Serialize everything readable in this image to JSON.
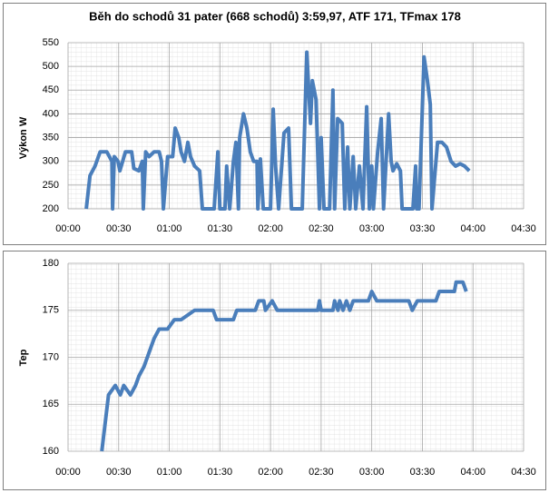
{
  "chart_data": [
    {
      "type": "line",
      "title": "Běh do schodů 31 pater (668 schodů) 3:59,97, ATF 171, TFmax 178",
      "y_label": "Výkon W",
      "xlim": [
        0,
        270
      ],
      "ylim": [
        200,
        550
      ],
      "grid": true,
      "xticks": [
        {
          "value": 0,
          "label": "00:00"
        },
        {
          "value": 30,
          "label": "00:30"
        },
        {
          "value": 60,
          "label": "01:00"
        },
        {
          "value": 90,
          "label": "01:30"
        },
        {
          "value": 120,
          "label": "02:00"
        },
        {
          "value": 150,
          "label": "02:30"
        },
        {
          "value": 180,
          "label": "03:00"
        },
        {
          "value": 210,
          "label": "03:30"
        },
        {
          "value": 240,
          "label": "04:00"
        },
        {
          "value": 270,
          "label": "04:30"
        }
      ],
      "yticks": [
        200,
        250,
        300,
        350,
        400,
        450,
        500,
        550
      ],
      "x": [
        10.8,
        13,
        16,
        19,
        23,
        26,
        26.4,
        27.4,
        29.6,
        30.7,
        34,
        37.7,
        39,
        42,
        44,
        44.6,
        46,
        48,
        51,
        54,
        55.4,
        56.5,
        59,
        62,
        63.5,
        65.6,
        67,
        69,
        71,
        72.6,
        75,
        78,
        79.6,
        86.6,
        88.8,
        90,
        93,
        94,
        95.8,
        98,
        99.5,
        101,
        101.7,
        104,
        106,
        108,
        110,
        112,
        112.5,
        114,
        115.7,
        120,
        121.6,
        123,
        124.8,
        128,
        130.7,
        132.4,
        138.8,
        141.5,
        143.7,
        144.8,
        147,
        149,
        150,
        151.7,
        155,
        157,
        158,
        159.8,
        162.5,
        164,
        165.7,
        167,
        169,
        170.5,
        172.7,
        174.8,
        177,
        178.6,
        180,
        181,
        183.5,
        185.6,
        187,
        190,
        191.5,
        192.6,
        194.8,
        197,
        198,
        204.4,
        206,
        206.6,
        208,
        211,
        213,
        214.7,
        215.7,
        219,
        221.6,
        224.3,
        227,
        229.7,
        232.4,
        235,
        237.8
      ],
      "series": [
        {
          "color": "#4a7ebb",
          "values": [
            200,
            270,
            290,
            320,
            320,
            300,
            200,
            310,
            300,
            280,
            320,
            320,
            285,
            280,
            300,
            200,
            320,
            310,
            320,
            320,
            300,
            200,
            310,
            310,
            370,
            350,
            320,
            300,
            340,
            310,
            290,
            280,
            200,
            200,
            320,
            200,
            200,
            290,
            200,
            300,
            340,
            200,
            350,
            400,
            370,
            320,
            300,
            300,
            200,
            305,
            200,
            200,
            410,
            290,
            200,
            360,
            370,
            200,
            200,
            530,
            380,
            470,
            430,
            200,
            350,
            200,
            200,
            450,
            200,
            390,
            380,
            200,
            330,
            200,
            310,
            200,
            290,
            200,
            415,
            200,
            290,
            200,
            320,
            390,
            200,
            400,
            300,
            280,
            295,
            280,
            200,
            200,
            290,
            200,
            200,
            520,
            470,
            420,
            200,
            340,
            340,
            330,
            300,
            290,
            295,
            290,
            280
          ]
        }
      ]
    },
    {
      "type": "line",
      "y_label": "Tep",
      "xlim": [
        0,
        270
      ],
      "ylim": [
        160,
        180
      ],
      "grid": true,
      "xticks": [
        {
          "value": 0,
          "label": "00:00"
        },
        {
          "value": 30,
          "label": "00:30"
        },
        {
          "value": 60,
          "label": "01:00"
        },
        {
          "value": 90,
          "label": "01:30"
        },
        {
          "value": 120,
          "label": "02:00"
        },
        {
          "value": 150,
          "label": "02:30"
        },
        {
          "value": 180,
          "label": "03:00"
        },
        {
          "value": 210,
          "label": "03:30"
        },
        {
          "value": 240,
          "label": "04:00"
        },
        {
          "value": 270,
          "label": "04:30"
        }
      ],
      "yticks": [
        160,
        165,
        170,
        175,
        180
      ],
      "x": [
        20,
        24,
        28,
        31,
        33,
        37,
        40,
        42,
        45,
        47,
        49,
        51,
        54,
        59,
        63,
        67,
        75,
        86,
        88,
        98,
        100,
        111,
        113,
        116,
        117,
        121,
        124,
        148,
        149,
        150,
        157,
        158,
        160,
        161,
        163,
        165,
        167,
        169,
        178,
        180,
        183,
        202,
        204,
        207,
        218,
        220,
        229,
        230,
        234,
        236
      ],
      "series": [
        {
          "color": "#4a7ebb",
          "values": [
            160,
            166,
            167,
            166,
            167,
            166,
            167,
            168,
            169,
            170,
            171,
            172,
            173,
            173,
            174,
            174,
            175,
            175,
            174,
            174,
            175,
            175,
            176,
            176,
            175,
            176,
            175,
            175,
            176,
            175,
            175,
            176,
            175,
            176,
            175,
            176,
            175,
            176,
            176,
            177,
            176,
            176,
            175,
            176,
            176,
            177,
            177,
            178,
            178,
            177
          ]
        }
      ]
    }
  ]
}
